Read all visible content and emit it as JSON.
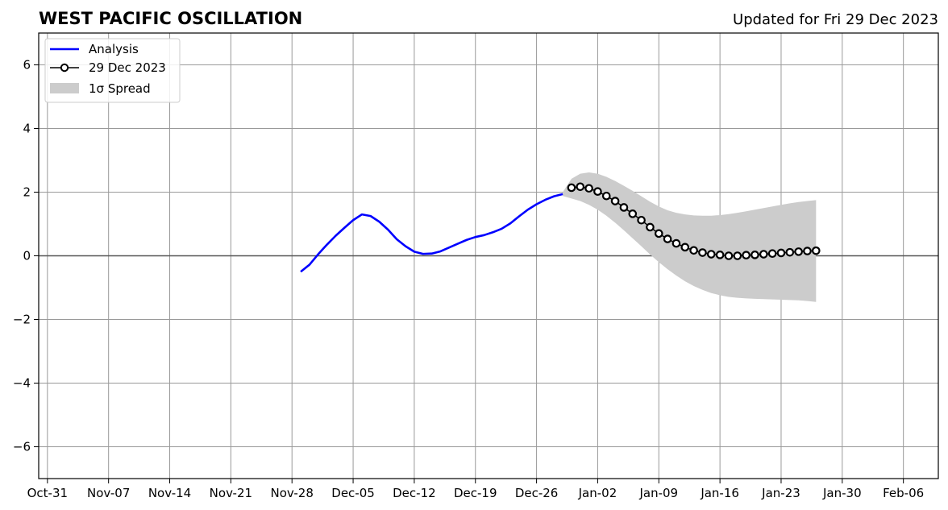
{
  "chart_data": {
    "type": "line",
    "title": "WEST PACIFIC OSCILLATION",
    "subtitle": "Updated for Fri 29 Dec 2023",
    "xlabel": "",
    "ylabel": "",
    "grid": true,
    "legend_placement": "top-left",
    "xlim": [
      "2023-10-30",
      "2024-02-10"
    ],
    "ylim": [
      -7,
      7
    ],
    "x_ticks": [
      "Oct-31",
      "Nov-07",
      "Nov-14",
      "Nov-21",
      "Nov-28",
      "Dec-05",
      "Dec-12",
      "Dec-19",
      "Dec-26",
      "Jan-02",
      "Jan-09",
      "Jan-16",
      "Jan-23",
      "Jan-30",
      "Feb-06"
    ],
    "x_tick_dates": [
      "2023-10-31",
      "2023-11-07",
      "2023-11-14",
      "2023-11-21",
      "2023-11-28",
      "2023-12-05",
      "2023-12-12",
      "2023-12-19",
      "2023-12-26",
      "2024-01-02",
      "2024-01-09",
      "2024-01-16",
      "2024-01-23",
      "2024-01-30",
      "2024-02-06"
    ],
    "y_ticks": [
      6,
      4,
      2,
      0,
      -2,
      -4,
      -6
    ],
    "y_tick_labels": [
      "6",
      "4",
      "2",
      "0",
      "−2",
      "−4",
      "−6"
    ],
    "colors": {
      "analysis": "#0000ff",
      "forecast": "#000000",
      "spread": "#cccccc",
      "grid": "#999999",
      "zero_line": "#555555"
    },
    "series": [
      {
        "name": "Analysis",
        "kind": "line",
        "x": [
          "2023-11-29",
          "2023-11-30",
          "2023-12-01",
          "2023-12-02",
          "2023-12-03",
          "2023-12-04",
          "2023-12-05",
          "2023-12-06",
          "2023-12-07",
          "2023-12-08",
          "2023-12-09",
          "2023-12-10",
          "2023-12-11",
          "2023-12-12",
          "2023-12-13",
          "2023-12-14",
          "2023-12-15",
          "2023-12-16",
          "2023-12-17",
          "2023-12-18",
          "2023-12-19",
          "2023-12-20",
          "2023-12-21",
          "2023-12-22",
          "2023-12-23",
          "2023-12-24",
          "2023-12-25",
          "2023-12-26",
          "2023-12-27",
          "2023-12-28",
          "2023-12-29"
        ],
        "y": [
          -0.5,
          -0.28,
          0.05,
          0.35,
          0.63,
          0.88,
          1.12,
          1.3,
          1.25,
          1.07,
          0.82,
          0.52,
          0.3,
          0.13,
          0.06,
          0.07,
          0.14,
          0.26,
          0.38,
          0.5,
          0.59,
          0.65,
          0.74,
          0.85,
          1.02,
          1.24,
          1.45,
          1.62,
          1.76,
          1.87,
          1.94
        ]
      },
      {
        "name": "29 Dec 2023",
        "kind": "line-marker",
        "x": [
          "2023-12-30",
          "2023-12-31",
          "2024-01-01",
          "2024-01-02",
          "2024-01-03",
          "2024-01-04",
          "2024-01-05",
          "2024-01-06",
          "2024-01-07",
          "2024-01-08",
          "2024-01-09",
          "2024-01-10",
          "2024-01-11",
          "2024-01-12",
          "2024-01-13",
          "2024-01-14",
          "2024-01-15",
          "2024-01-16",
          "2024-01-17",
          "2024-01-18",
          "2024-01-19",
          "2024-01-20",
          "2024-01-21",
          "2024-01-22",
          "2024-01-23",
          "2024-01-24",
          "2024-01-25",
          "2024-01-26",
          "2024-01-27"
        ],
        "y": [
          2.14,
          2.17,
          2.12,
          2.02,
          1.88,
          1.72,
          1.52,
          1.32,
          1.12,
          0.9,
          0.7,
          0.53,
          0.39,
          0.27,
          0.17,
          0.1,
          0.05,
          0.03,
          0.0,
          0.0,
          0.02,
          0.03,
          0.05,
          0.07,
          0.09,
          0.11,
          0.13,
          0.15,
          0.16
        ]
      },
      {
        "name": "1σ Spread",
        "kind": "band",
        "x": [
          "2023-12-29",
          "2023-12-30",
          "2023-12-31",
          "2024-01-01",
          "2024-01-02",
          "2024-01-03",
          "2024-01-04",
          "2024-01-05",
          "2024-01-06",
          "2024-01-07",
          "2024-01-08",
          "2024-01-09",
          "2024-01-10",
          "2024-01-11",
          "2024-01-12",
          "2024-01-13",
          "2024-01-14",
          "2024-01-15",
          "2024-01-16",
          "2024-01-17",
          "2024-01-18",
          "2024-01-19",
          "2024-01-20",
          "2024-01-21",
          "2024-01-22",
          "2024-01-23",
          "2024-01-24",
          "2024-01-25",
          "2024-01-26",
          "2024-01-27"
        ],
        "upper": [
          2.0,
          2.42,
          2.58,
          2.62,
          2.58,
          2.48,
          2.35,
          2.2,
          2.04,
          1.87,
          1.7,
          1.55,
          1.43,
          1.35,
          1.3,
          1.27,
          1.26,
          1.26,
          1.28,
          1.31,
          1.35,
          1.4,
          1.45,
          1.5,
          1.55,
          1.6,
          1.65,
          1.69,
          1.72,
          1.75
        ],
        "lower": [
          1.88,
          1.8,
          1.72,
          1.6,
          1.45,
          1.26,
          1.04,
          0.8,
          0.55,
          0.3,
          0.04,
          -0.2,
          -0.42,
          -0.62,
          -0.8,
          -0.95,
          -1.07,
          -1.17,
          -1.24,
          -1.29,
          -1.32,
          -1.34,
          -1.35,
          -1.36,
          -1.37,
          -1.38,
          -1.39,
          -1.4,
          -1.42,
          -1.45
        ]
      }
    ]
  },
  "legend": {
    "items": [
      {
        "label": "Analysis"
      },
      {
        "label": "29 Dec 2023"
      },
      {
        "label": "1σ Spread"
      }
    ]
  }
}
